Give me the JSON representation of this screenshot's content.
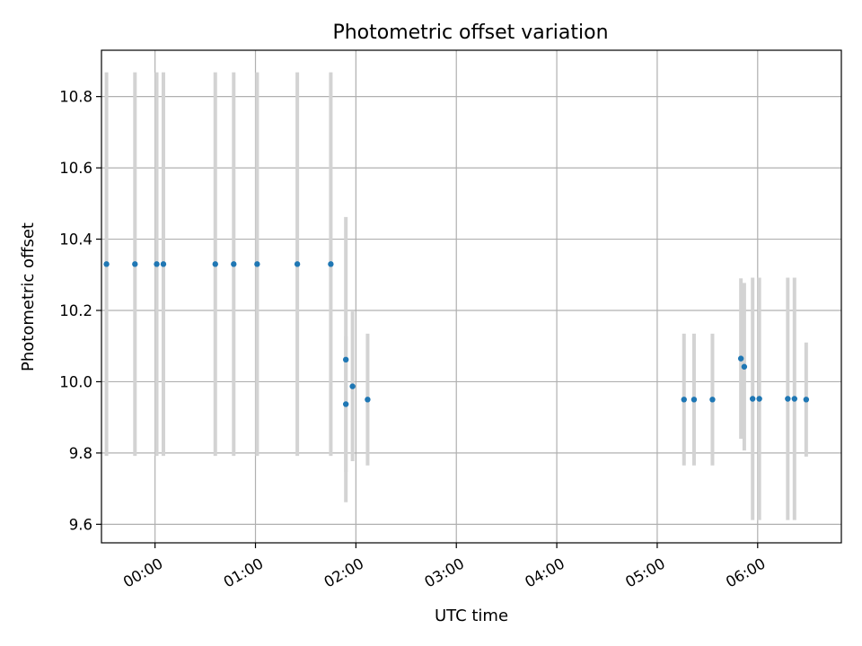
{
  "chart_data": {
    "type": "scatter",
    "title": "Photometric offset variation",
    "xlabel": "UTC time",
    "ylabel": "Photometric offset",
    "x_unit": "hours UTC",
    "xlim": [
      "-00:32",
      "06:50"
    ],
    "ylim": [
      9.548,
      10.93
    ],
    "grid": true,
    "x_ticks": [
      {
        "value": "00:00",
        "label": "00:00"
      },
      {
        "value": "01:00",
        "label": "01:00"
      },
      {
        "value": "02:00",
        "label": "02:00"
      },
      {
        "value": "03:00",
        "label": "03:00"
      },
      {
        "value": "04:00",
        "label": "04:00"
      },
      {
        "value": "05:00",
        "label": "05:00"
      },
      {
        "value": "06:00",
        "label": "06:00"
      }
    ],
    "y_ticks": [
      {
        "value": 9.6,
        "label": "9.6"
      },
      {
        "value": 9.8,
        "label": "9.8"
      },
      {
        "value": 10.0,
        "label": "10.0"
      },
      {
        "value": 10.2,
        "label": "10.2"
      },
      {
        "value": 10.4,
        "label": "10.4"
      },
      {
        "value": 10.6,
        "label": "10.6"
      },
      {
        "value": 10.8,
        "label": "10.8"
      }
    ],
    "points_color": "#1f77b4",
    "errorbar_color": "#d3d3d3",
    "points": [
      {
        "time": "23:31",
        "y": 10.33,
        "yerr": 0.538
      },
      {
        "time": "23:48",
        "y": 10.33,
        "yerr": 0.538
      },
      {
        "time": "00:01",
        "y": 10.33,
        "yerr": 0.538
      },
      {
        "time": "00:05",
        "y": 10.33,
        "yerr": 0.538
      },
      {
        "time": "00:36",
        "y": 10.33,
        "yerr": 0.538
      },
      {
        "time": "00:47",
        "y": 10.33,
        "yerr": 0.538
      },
      {
        "time": "01:01",
        "y": 10.33,
        "yerr": 0.538
      },
      {
        "time": "01:25",
        "y": 10.33,
        "yerr": 0.538
      },
      {
        "time": "01:45",
        "y": 10.33,
        "yerr": 0.538
      },
      {
        "time": "01:54",
        "y": 10.062,
        "yerr": 0.4
      },
      {
        "time": "01:54",
        "y": 9.937,
        "yerr": 0.19
      },
      {
        "time": "01:58",
        "y": 9.987,
        "yerr": 0.21
      },
      {
        "time": "02:07",
        "y": 9.95,
        "yerr": 0.185
      },
      {
        "time": "05:16",
        "y": 9.95,
        "yerr": 0.185
      },
      {
        "time": "05:22",
        "y": 9.95,
        "yerr": 0.185
      },
      {
        "time": "05:33",
        "y": 9.95,
        "yerr": 0.185
      },
      {
        "time": "05:50",
        "y": 10.065,
        "yerr": 0.225
      },
      {
        "time": "05:52",
        "y": 10.042,
        "yerr": 0.235
      },
      {
        "time": "05:57",
        "y": 9.952,
        "yerr": 0.34
      },
      {
        "time": "06:01",
        "y": 9.952,
        "yerr": 0.34
      },
      {
        "time": "06:18",
        "y": 9.952,
        "yerr": 0.34
      },
      {
        "time": "06:22",
        "y": 9.952,
        "yerr": 0.34
      },
      {
        "time": "06:29",
        "y": 9.95,
        "yerr": 0.16
      }
    ]
  }
}
